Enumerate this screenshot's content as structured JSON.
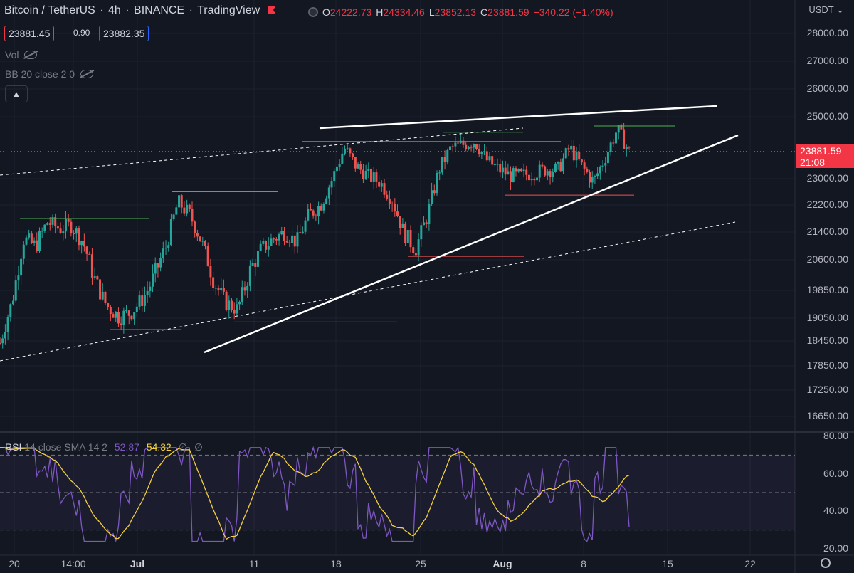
{
  "header": {
    "symbol": "Bitcoin / TetherUS",
    "interval": "4h",
    "exchange": "BINANCE",
    "source": "TradingView",
    "ohlc": {
      "o": "24222.73",
      "h": "24334.46",
      "l": "23852.13",
      "c": "23881.59",
      "change": "−340.22 (−1.40%)"
    },
    "sell_price": "23881.45",
    "spread": "0.90",
    "buy_price": "23882.35"
  },
  "indicators": {
    "vol": "Vol",
    "bb": "BB 20 close 2 0",
    "collapse_icon": "chevron-up-icon"
  },
  "rsi_legend": {
    "name": "RSI",
    "params": "14 close SMA 14 2",
    "rsi_value": "52.87",
    "sma_value": "54.32",
    "na1": "∅",
    "na2": "∅"
  },
  "price_axis": {
    "currency": "USDT",
    "labels": [
      "28000.00",
      "27000.00",
      "26000.00",
      "25000.00",
      "23000.00",
      "22200.00",
      "21400.00",
      "20600.00",
      "19850.00",
      "19050.00",
      "18450.00",
      "17850.00",
      "17250.00",
      "16650.00"
    ],
    "current_price": "23881.59",
    "countdown": "21:08"
  },
  "rsi_axis": {
    "labels": [
      "80.00",
      "60.00",
      "40.00",
      "20.00"
    ]
  },
  "time_axis": {
    "labels": [
      "20",
      "14:00",
      "Jul",
      "11",
      "18",
      "25",
      "Aug",
      "8",
      "15",
      "22"
    ]
  },
  "colors": {
    "up": "#26a69a",
    "down": "#ef5350",
    "rsi": "#7e57c2",
    "rsi_sma": "#f4d03f",
    "resistance": "#4caf50",
    "support": "#ef5350",
    "trend": "#ffffff"
  },
  "chart_data": {
    "type": "candlestick",
    "title": "Bitcoin / TetherUS · 4h · BINANCE",
    "y_unit": "USDT",
    "x_dates": [
      "20",
      "14:00",
      "Jul",
      "11",
      "18",
      "25",
      "Aug",
      "8",
      "15",
      "22"
    ],
    "close_path": [
      18400,
      19500,
      21200,
      21000,
      21700,
      21500,
      21600,
      21100,
      20100,
      19400,
      19100,
      19200,
      19600,
      20200,
      21000,
      22300,
      21900,
      21100,
      20100,
      19500,
      19300,
      20300,
      20900,
      21200,
      21400,
      21100,
      21900,
      22200,
      23000,
      24000,
      23400,
      23100,
      22900,
      22400,
      21400,
      20900,
      21900,
      23300,
      24000,
      24100,
      24200,
      23600,
      23300,
      23100,
      23100,
      23200,
      23300,
      23300,
      24000,
      23400,
      22900,
      23700,
      24600,
      23880
    ],
    "trendlines": {
      "upper_resistance": {
        "from": [
          "Jul 16",
          24950
        ],
        "to": [
          "Aug 18",
          25250
        ]
      },
      "rising_support": {
        "from": [
          "Jul 8",
          18150
        ],
        "to": [
          "Aug 19",
          24550
        ]
      }
    },
    "rsi": {
      "overbought": 70,
      "oversold": 30,
      "mid": 50,
      "last": 52.87,
      "sma_last": 54.32
    },
    "ylim": [
      16500,
      28500
    ]
  }
}
